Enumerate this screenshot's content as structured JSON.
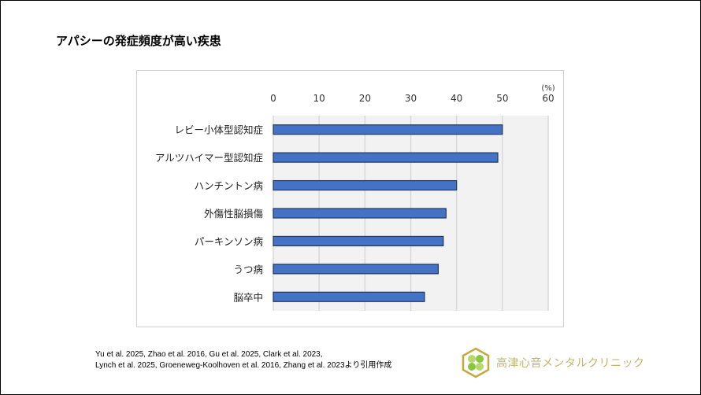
{
  "title": "アパシーの発症頻度が高い疾患",
  "chart_data": {
    "type": "bar",
    "orientation": "horizontal",
    "categories": [
      "レビー小体型認知症",
      "アルツハイマー型認知症",
      "ハンチントン病",
      "外傷性脳損傷",
      "パーキンソン病",
      "うつ病",
      "脳卒中"
    ],
    "values": [
      50,
      49,
      40,
      37.7,
      37.1,
      36,
      33
    ],
    "xunit": "(%)",
    "xlim": [
      0,
      60
    ],
    "xticks": [
      "0",
      "10",
      "20",
      "30",
      "40",
      "50",
      "60"
    ],
    "xaxis_position": "top",
    "grid": true,
    "bar_color": "#4472c4",
    "bar_edge_color": "#1f3864",
    "plot_background": "#f2f2f2"
  },
  "references": [
    "Yu et al. 2025, Zhao et al. 2016, Gu et al. 2025, Clark et al. 2023,",
    "Lynch et al. 2025, Groeneweg-Koolhoven et al. 2016, Zhang et al. 2023より引用作成"
  ],
  "logo": {
    "text": "高津心音メンタルクリニック",
    "color": "#c4b46a"
  }
}
